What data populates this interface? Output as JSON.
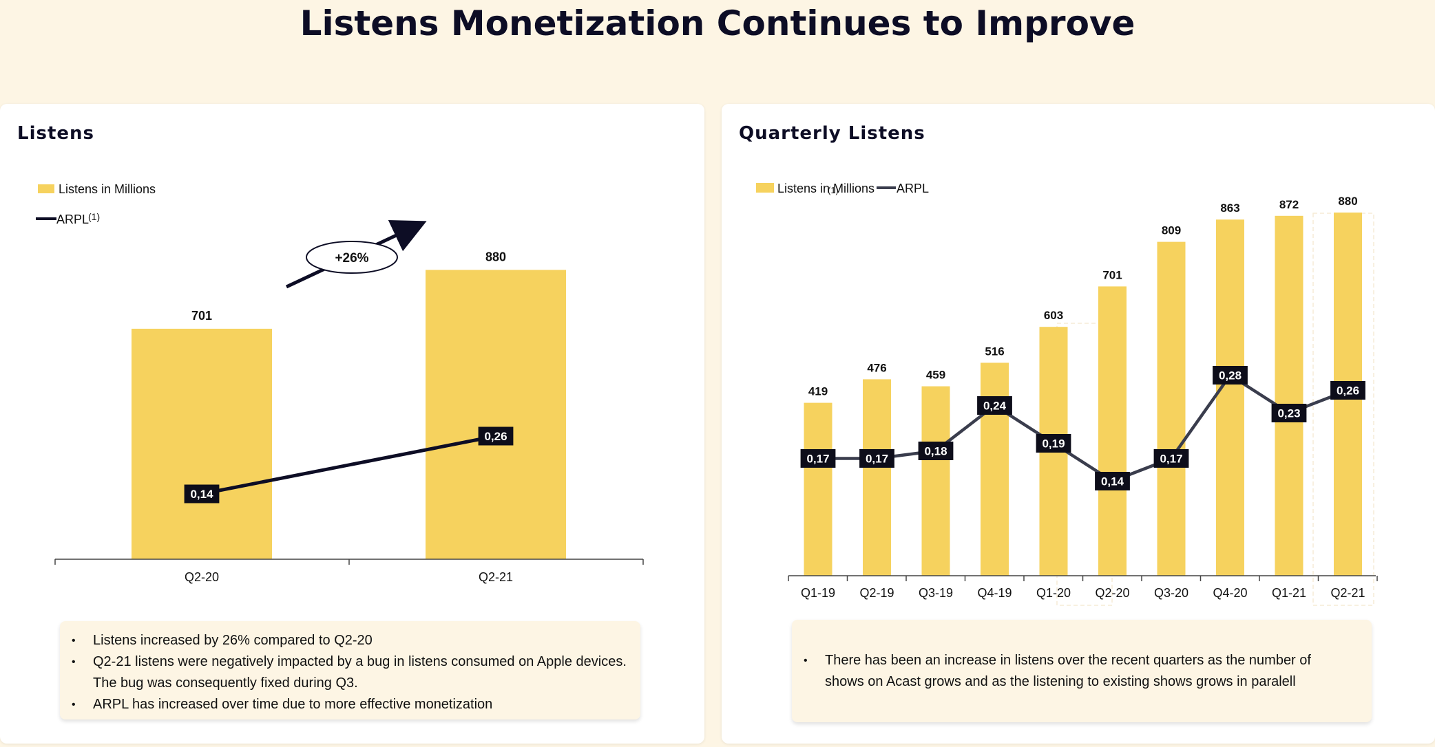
{
  "page": {
    "title": "Listens Monetization Continues to Improve"
  },
  "colors": {
    "bar": "#f6d25e",
    "line_left": "#0d0d25",
    "line_right": "#3a3d4d",
    "label_bg": "#0d0d1a",
    "background": "#fdf5e4"
  },
  "chart_data": [
    {
      "type": "bar",
      "title": "Listens",
      "legend": [
        "Listens in Millions",
        "ARPL"
      ],
      "legend_superscript": "(1)",
      "categories": [
        "Q2-20",
        "Q2-21"
      ],
      "series": [
        {
          "name": "Listens in Millions",
          "type": "bar",
          "values": [
            701,
            880
          ]
        },
        {
          "name": "ARPL",
          "type": "line",
          "values": [
            0.14,
            0.26
          ]
        }
      ],
      "value_labels": [
        "701",
        "880"
      ],
      "line_labels": [
        "0,14",
        "0,26"
      ],
      "annotation": "+26%",
      "ylim": [
        0,
        1000
      ],
      "grid": false
    },
    {
      "type": "bar",
      "title": "Quarterly Listens",
      "legend": [
        "Listens in Millions",
        "ARPL"
      ],
      "legend_superscript": "(1)",
      "categories": [
        "Q1-19",
        "Q2-19",
        "Q3-19",
        "Q4-19",
        "Q1-20",
        "Q2-20",
        "Q3-20",
        "Q4-20",
        "Q1-21",
        "Q2-21"
      ],
      "series": [
        {
          "name": "Listens in Millions",
          "type": "bar",
          "values": [
            419,
            476,
            459,
            516,
            603,
            701,
            809,
            863,
            872,
            880
          ]
        },
        {
          "name": "ARPL",
          "type": "line",
          "values": [
            0.17,
            0.17,
            0.18,
            0.24,
            0.19,
            0.14,
            0.17,
            0.28,
            0.23,
            0.26
          ]
        }
      ],
      "value_labels": [
        "419",
        "476",
        "459",
        "516",
        "603",
        "701",
        "809",
        "863",
        "872",
        "880"
      ],
      "line_labels": [
        "0,17",
        "0,17",
        "0,18",
        "0,24",
        "0,19",
        "0,14",
        "0,17",
        "0,28",
        "0,23",
        "0,26"
      ],
      "ylim": [
        0,
        1000
      ],
      "grid": false
    }
  ],
  "notes_left": [
    "Listens increased by 26% compared to Q2-20",
    "Q2-21 listens were negatively impacted by a bug in listens consumed on Apple devices. The bug was consequently fixed during Q3.",
    "ARPL has increased over time due to more effective monetization"
  ],
  "notes_right": [
    "There has been an increase in listens over the recent quarters as the number of shows on Acast grows and as the listening to existing shows grows in paralell"
  ]
}
